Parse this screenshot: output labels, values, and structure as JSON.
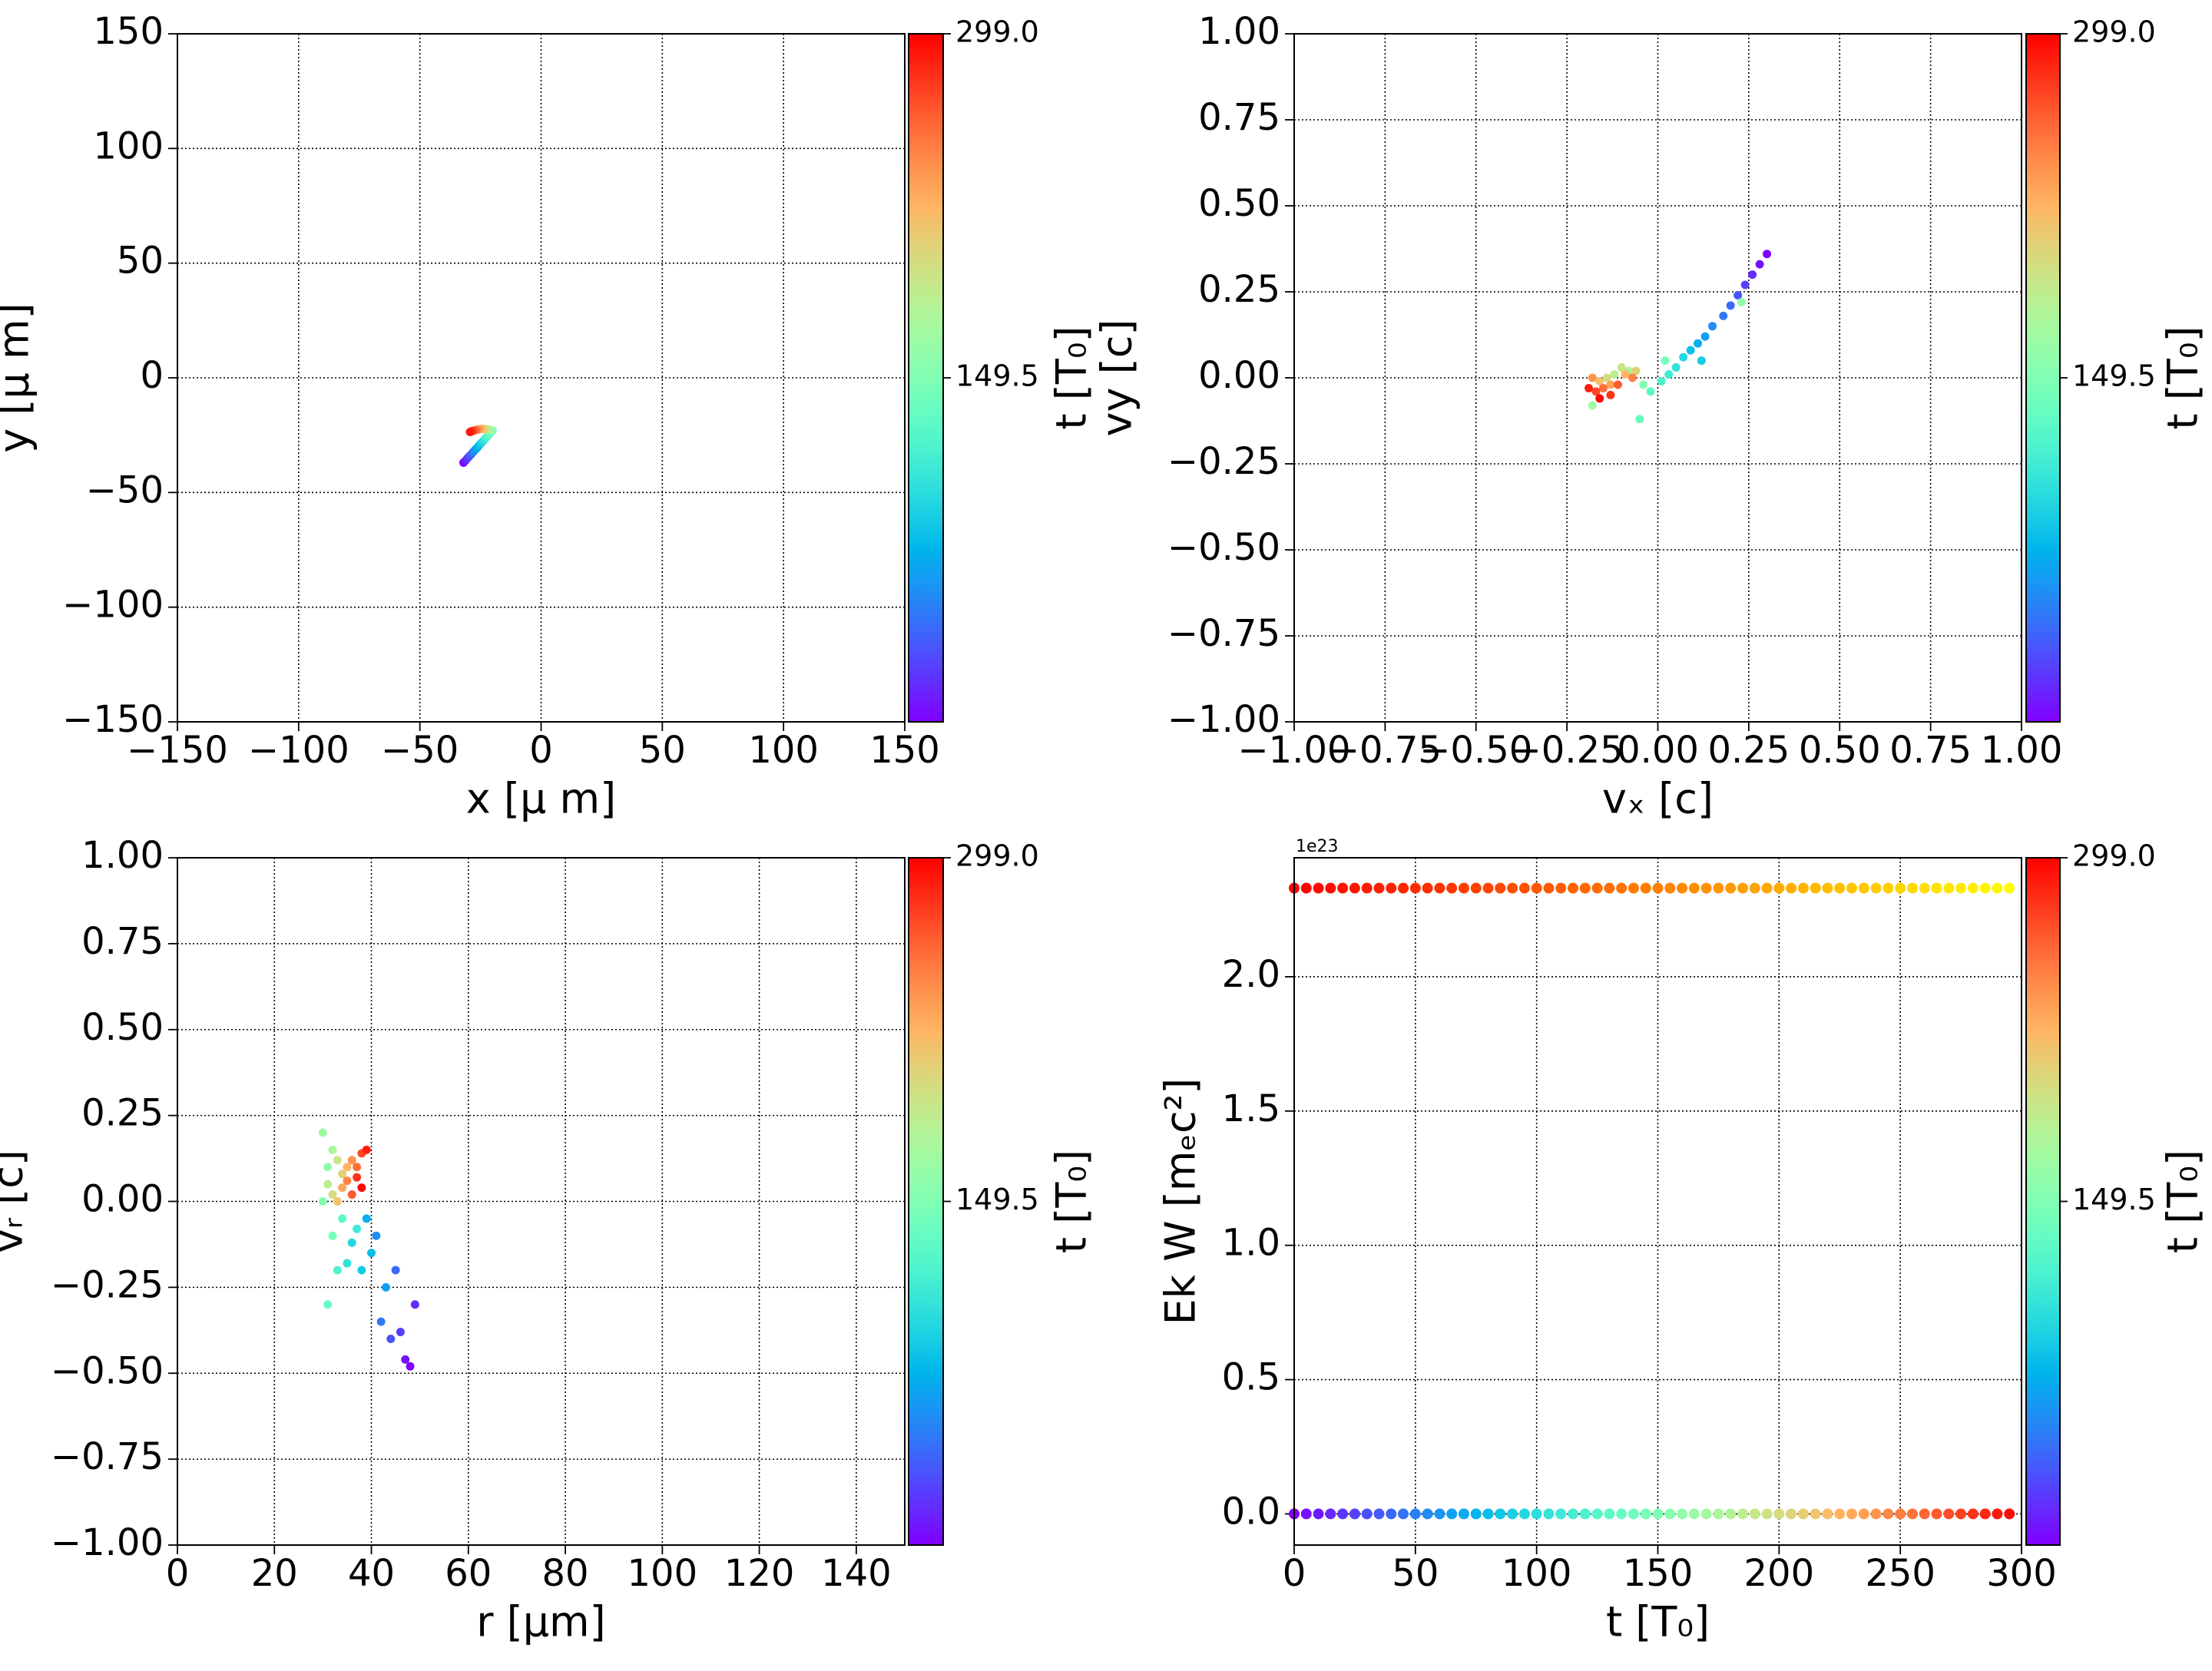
{
  "chart_data": [
    {
      "type": "scatter",
      "xlabel": "x  [μ m]",
      "ylabel": "y  [μ m]",
      "xlim": [
        -150,
        150
      ],
      "ylim": [
        -150,
        150
      ],
      "xticks": [
        {
          "value": -150,
          "label": "−150"
        },
        {
          "value": -100,
          "label": "−100"
        },
        {
          "value": -50,
          "label": "−50"
        },
        0,
        50,
        100,
        150
      ],
      "yticks": [
        {
          "value": -150,
          "label": "−150"
        },
        {
          "value": -100,
          "label": "−100"
        },
        {
          "value": -50,
          "label": "−50"
        },
        0,
        50,
        100,
        150
      ],
      "grid": true,
      "cmap": "rainbow",
      "x": [
        -32,
        -31.2,
        -30.4,
        -29.6,
        -28.8,
        -28.0,
        -27.2,
        -26.4,
        -25.6,
        -24.8,
        -24.0,
        -23.2,
        -22.4,
        -21.6,
        -20.8,
        -20.0,
        -20.7,
        -21.3,
        -22.0,
        -22.7,
        -23.3,
        -24.0,
        -24.7,
        -25.3,
        -26.0,
        -26.7,
        -27.3,
        -28.0,
        -28.7,
        -29.3
      ],
      "y": [
        -37,
        -36.1,
        -35.1,
        -34.2,
        -33.3,
        -32.3,
        -31.4,
        -30.5,
        -29.5,
        -28.6,
        -27.7,
        -26.7,
        -25.8,
        -24.9,
        -23.9,
        -23.0,
        -22.8,
        -22.6,
        -22.5,
        -22.4,
        -22.3,
        -22.3,
        -22.3,
        -22.4,
        -22.5,
        -22.7,
        -22.9,
        -23.1,
        -23.3,
        -23.6
      ],
      "c": [
        0,
        10,
        20,
        30,
        40,
        50,
        60,
        70,
        80,
        90,
        100,
        110,
        120,
        130,
        140,
        150,
        160,
        170,
        180,
        190,
        200,
        210,
        220,
        230,
        240,
        250,
        260,
        270,
        280,
        290
      ],
      "clim": [
        0,
        299
      ],
      "cticks": [
        149.5,
        {
          "value": 299,
          "label": "299.0"
        }
      ],
      "clabel": "t [T₀]"
    },
    {
      "type": "scatter",
      "xlabel": "vₓ [c]",
      "ylabel": "vy [c]",
      "xlim": [
        -1,
        1
      ],
      "ylim": [
        -1,
        1
      ],
      "xticks": [
        {
          "value": -1,
          "label": "−1.00"
        },
        {
          "value": -0.75,
          "label": "−0.75"
        },
        {
          "value": -0.5,
          "label": "−0.50"
        },
        {
          "value": -0.25,
          "label": "−0.25"
        },
        {
          "value": 0,
          "label": "0.00"
        },
        {
          "value": 0.25,
          "label": "0.25"
        },
        {
          "value": 0.5,
          "label": "0.50"
        },
        {
          "value": 0.75,
          "label": "0.75"
        },
        {
          "value": 1,
          "label": "1.00"
        }
      ],
      "yticks": [
        {
          "value": -1,
          "label": "−1.00"
        },
        {
          "value": -0.75,
          "label": "−0.75"
        },
        {
          "value": -0.5,
          "label": "−0.50"
        },
        {
          "value": -0.25,
          "label": "−0.25"
        },
        {
          "value": 0,
          "label": "0.00"
        },
        {
          "value": 0.25,
          "label": "0.25"
        },
        {
          "value": 0.5,
          "label": "0.50"
        },
        {
          "value": 0.75,
          "label": "0.75"
        },
        {
          "value": 1,
          "label": "1.00"
        }
      ],
      "grid": true,
      "cmap": "rainbow",
      "x": [
        0.3,
        0.28,
        0.26,
        0.24,
        0.22,
        0.2,
        0.18,
        0.15,
        0.13,
        0.11,
        0.09,
        0.12,
        0.07,
        0.05,
        0.03,
        0.01,
        -0.02,
        -0.05,
        0.02,
        -0.04,
        0.23,
        -0.18,
        -0.08,
        -0.12,
        -0.1,
        -0.14,
        -0.06,
        -0.16,
        -0.09,
        -0.13,
        -0.18,
        -0.07,
        -0.15,
        -0.11,
        -0.17,
        -0.13,
        -0.19,
        -0.16
      ],
      "y": [
        0.36,
        0.33,
        0.3,
        0.27,
        0.24,
        0.21,
        0.18,
        0.15,
        0.12,
        0.1,
        0.08,
        0.05,
        0.06,
        0.03,
        0.01,
        -0.01,
        -0.04,
        -0.12,
        0.05,
        -0.02,
        0.22,
        -0.08,
        0.02,
        0.01,
        0.03,
        0.0,
        0.02,
        -0.01,
        0.01,
        -0.02,
        0.0,
        0.0,
        -0.03,
        -0.02,
        -0.04,
        -0.05,
        -0.03,
        -0.06
      ],
      "c": [
        0,
        8,
        16,
        24,
        32,
        40,
        48,
        56,
        64,
        72,
        80,
        88,
        96,
        104,
        112,
        120,
        128,
        136,
        144,
        152,
        160,
        168,
        176,
        184,
        192,
        200,
        208,
        216,
        224,
        232,
        240,
        248,
        256,
        264,
        272,
        280,
        288,
        296
      ],
      "clim": [
        0,
        299
      ],
      "cticks": [
        149.5,
        {
          "value": 299,
          "label": "299.0"
        }
      ],
      "clabel": "t [T₀]"
    },
    {
      "type": "scatter",
      "xlabel": "r [μm]",
      "ylabel": "vᵣ [c]",
      "xlim": [
        0,
        150
      ],
      "ylim": [
        -1,
        1
      ],
      "xticks": [
        0,
        20,
        40,
        60,
        80,
        100,
        120,
        140
      ],
      "yticks": [
        {
          "value": -1,
          "label": "−1.00"
        },
        {
          "value": -0.75,
          "label": "−0.75"
        },
        {
          "value": -0.5,
          "label": "−0.50"
        },
        {
          "value": -0.25,
          "label": "−0.25"
        },
        {
          "value": 0,
          "label": "0.00"
        },
        {
          "value": 0.25,
          "label": "0.25"
        },
        {
          "value": 0.5,
          "label": "0.50"
        },
        {
          "value": 0.75,
          "label": "0.75"
        },
        {
          "value": 1,
          "label": "1.00"
        }
      ],
      "grid": true,
      "cmap": "rainbow",
      "x": [
        48,
        47,
        49,
        46,
        44,
        45,
        42,
        41,
        43,
        39,
        40,
        38,
        36,
        35,
        37,
        33,
        34,
        31,
        32,
        30,
        31,
        30,
        32,
        31,
        33,
        32,
        34,
        33,
        35,
        34,
        36,
        35,
        37,
        36,
        38,
        37,
        39,
        38
      ],
      "y": [
        -0.48,
        -0.46,
        -0.3,
        -0.38,
        -0.4,
        -0.2,
        -0.35,
        -0.1,
        -0.25,
        -0.05,
        -0.15,
        -0.2,
        -0.12,
        -0.18,
        -0.08,
        -0.2,
        -0.05,
        -0.3,
        -0.1,
        0.0,
        0.1,
        0.2,
        0.15,
        0.05,
        0.12,
        0.02,
        0.08,
        0.0,
        0.1,
        0.04,
        0.12,
        0.06,
        0.1,
        0.02,
        0.14,
        0.07,
        0.15,
        0.04
      ],
      "c": [
        0,
        8,
        16,
        24,
        32,
        40,
        48,
        56,
        64,
        72,
        80,
        88,
        96,
        104,
        112,
        120,
        128,
        136,
        144,
        152,
        160,
        168,
        176,
        184,
        192,
        200,
        208,
        216,
        224,
        232,
        240,
        248,
        256,
        264,
        272,
        280,
        288,
        296
      ],
      "clim": [
        0,
        299
      ],
      "cticks": [
        149.5,
        {
          "value": 299,
          "label": "299.0"
        }
      ],
      "clabel": "t [T₀]"
    },
    {
      "type": "scatter",
      "xlabel": "t [T₀]",
      "ylabel": "Ek W [mₑc²]",
      "y_offset_label": "1e23",
      "xlim": [
        0,
        300
      ],
      "ylim": [
        -0.116,
        2.443
      ],
      "xticks": [
        0,
        50,
        100,
        150,
        200,
        250,
        300
      ],
      "yticks": [
        {
          "value": 0,
          "label": "0.0"
        },
        {
          "value": 0.5,
          "label": "0.5"
        },
        {
          "value": 1,
          "label": "1.0"
        },
        {
          "value": 1.5,
          "label": "1.5"
        },
        {
          "value": 2,
          "label": "2.0"
        }
      ],
      "grid": true,
      "color_by": "x",
      "series": [
        {
          "cmap": "autumn",
          "x": [
            0,
            5,
            10,
            15,
            20,
            25,
            30,
            35,
            40,
            45,
            50,
            55,
            60,
            65,
            70,
            75,
            80,
            85,
            90,
            95,
            100,
            105,
            110,
            115,
            120,
            125,
            130,
            135,
            140,
            145,
            150,
            155,
            160,
            165,
            170,
            175,
            180,
            185,
            190,
            195,
            200,
            205,
            210,
            215,
            220,
            225,
            230,
            235,
            240,
            245,
            250,
            255,
            260,
            265,
            270,
            275,
            280,
            285,
            290,
            295
          ],
          "y": [
            2.33,
            2.33,
            2.33,
            2.33,
            2.33,
            2.33,
            2.33,
            2.33,
            2.33,
            2.33,
            2.33,
            2.33,
            2.33,
            2.33,
            2.33,
            2.33,
            2.33,
            2.33,
            2.33,
            2.33,
            2.33,
            2.33,
            2.33,
            2.33,
            2.33,
            2.33,
            2.33,
            2.33,
            2.33,
            2.33,
            2.33,
            2.33,
            2.33,
            2.33,
            2.33,
            2.33,
            2.33,
            2.33,
            2.33,
            2.33,
            2.33,
            2.33,
            2.33,
            2.33,
            2.33,
            2.33,
            2.33,
            2.33,
            2.33,
            2.33,
            2.33,
            2.33,
            2.33,
            2.33,
            2.33,
            2.33,
            2.33,
            2.33,
            2.33,
            2.33
          ]
        },
        {
          "cmap": "rainbow",
          "x": [
            0,
            5,
            10,
            15,
            20,
            25,
            30,
            35,
            40,
            45,
            50,
            55,
            60,
            65,
            70,
            75,
            80,
            85,
            90,
            95,
            100,
            105,
            110,
            115,
            120,
            125,
            130,
            135,
            140,
            145,
            150,
            155,
            160,
            165,
            170,
            175,
            180,
            185,
            190,
            195,
            200,
            205,
            210,
            215,
            220,
            225,
            230,
            235,
            240,
            245,
            250,
            255,
            260,
            265,
            270,
            275,
            280,
            285,
            290,
            295
          ],
          "y": [
            0,
            0,
            0,
            0,
            0,
            0,
            0,
            0,
            0,
            0,
            0,
            0,
            0,
            0,
            0,
            0,
            0,
            0,
            0,
            0,
            0,
            0,
            0,
            0,
            0,
            0,
            0,
            0,
            0,
            0,
            0,
            0,
            0,
            0,
            0,
            0,
            0,
            0,
            0,
            0,
            0,
            0,
            0,
            0,
            0,
            0,
            0,
            0,
            0,
            0,
            0,
            0,
            0,
            0,
            0,
            0,
            0,
            0,
            0,
            0
          ]
        }
      ],
      "cmap": "rainbow",
      "clim": [
        0,
        299
      ],
      "cticks": [
        149.5,
        {
          "value": 299,
          "label": "299.0"
        }
      ],
      "clabel": "t [T₀]"
    }
  ]
}
